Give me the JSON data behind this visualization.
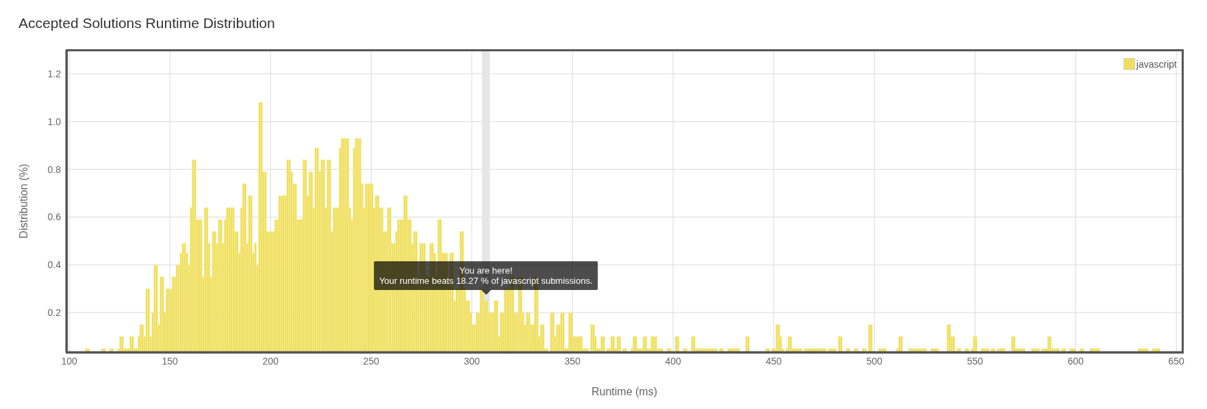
{
  "chart_data": {
    "type": "histogram",
    "title": "Accepted Solutions Runtime Distribution",
    "xlabel": "Runtime (ms)",
    "ylabel": "Distribution (%)",
    "bins": [
      108,
      109,
      110,
      111,
      112,
      113,
      114,
      115,
      116,
      117,
      118,
      119,
      120,
      121,
      122,
      123,
      124,
      125,
      126,
      127,
      128,
      129,
      130,
      131,
      132,
      133,
      134,
      135,
      136,
      137,
      138,
      139,
      140,
      141,
      142,
      143,
      144,
      145,
      146,
      147,
      148,
      149,
      150,
      151,
      152,
      153,
      154,
      155,
      156,
      157,
      158,
      159,
      160,
      161,
      162,
      163,
      164,
      165,
      166,
      167,
      168,
      169,
      170,
      171,
      172,
      173,
      174,
      175,
      176,
      177,
      178,
      179,
      180,
      181,
      182,
      183,
      184,
      185,
      186,
      187,
      188,
      189,
      190,
      191,
      192,
      193,
      194,
      195,
      196,
      197,
      198,
      199,
      200,
      201,
      202,
      203,
      204,
      205,
      206,
      207,
      208,
      209,
      210,
      211,
      212,
      213,
      214,
      215,
      216,
      217,
      218,
      219,
      220,
      221,
      222,
      223,
      224,
      225,
      226,
      227,
      228,
      229,
      230,
      231,
      232,
      233,
      234,
      235,
      236,
      237,
      238,
      239,
      240,
      241,
      242,
      243,
      244,
      245,
      246,
      247,
      248,
      249,
      250,
      251,
      252,
      253,
      254,
      255,
      256,
      257,
      258,
      259,
      260,
      261,
      262,
      263,
      264,
      265,
      266,
      267,
      268,
      269,
      270,
      271,
      272,
      273,
      274,
      275,
      276,
      277,
      278,
      279,
      280,
      281,
      282,
      283,
      284,
      285,
      286,
      287,
      288,
      289,
      290,
      291,
      292,
      293,
      294,
      295,
      296,
      297,
      298,
      299,
      300,
      301,
      302,
      303,
      304,
      305,
      306,
      307,
      308,
      309,
      310,
      311,
      312,
      313,
      314,
      315,
      316,
      317,
      318,
      319,
      320,
      321,
      322,
      323,
      324,
      325,
      326,
      327,
      328,
      329,
      330,
      331,
      332,
      333,
      334,
      335,
      336,
      337,
      338,
      339,
      340,
      341,
      342,
      343,
      344,
      345,
      346,
      347,
      348,
      349,
      350,
      351,
      352,
      353,
      354,
      355,
      356,
      357,
      358,
      359,
      360,
      361,
      362,
      363,
      364,
      365,
      366,
      367,
      368,
      369,
      370,
      371,
      372,
      373,
      374,
      375,
      376,
      377,
      378,
      379,
      380,
      381,
      382,
      383,
      384,
      385,
      386,
      387,
      388,
      389,
      390,
      391,
      392,
      393,
      394,
      395,
      396,
      397,
      398,
      399,
      400,
      401,
      402,
      403,
      404,
      405,
      406,
      407,
      408,
      409,
      410,
      411,
      412,
      413,
      414,
      415,
      416,
      417,
      418,
      419,
      420,
      421,
      422,
      423,
      424,
      425,
      426,
      427,
      428,
      429,
      430,
      431,
      432,
      433,
      434,
      435,
      436,
      437,
      438,
      439,
      440,
      441,
      442,
      443,
      444,
      445,
      446,
      447,
      448,
      449,
      450,
      451,
      452,
      453,
      454,
      455,
      456,
      457,
      458,
      459,
      460,
      461,
      462,
      463,
      464,
      465,
      466,
      467,
      468,
      469,
      470,
      471,
      472,
      473,
      474,
      475,
      476,
      477,
      478,
      479,
      480,
      481,
      482,
      483,
      484,
      485,
      486,
      487,
      488,
      489,
      490,
      491,
      492,
      493,
      494,
      495,
      496,
      497,
      498,
      499,
      500,
      501,
      502,
      503,
      504,
      505,
      506,
      507,
      508,
      509,
      510,
      511,
      512,
      513,
      514,
      515,
      516,
      517,
      518,
      519,
      520,
      521,
      522,
      523,
      524,
      525,
      526,
      527,
      528,
      529,
      530,
      531,
      532,
      533,
      534,
      535,
      536,
      537,
      538,
      539,
      540,
      541,
      542,
      543,
      544,
      545,
      546,
      547,
      548,
      549,
      550,
      551,
      552,
      553,
      554,
      555,
      556,
      557,
      558,
      559,
      560,
      561,
      562,
      563,
      564,
      565,
      566,
      567,
      568,
      569,
      570,
      571,
      572,
      573,
      574,
      575,
      576,
      577,
      578,
      579,
      580,
      581,
      582,
      583,
      584,
      585,
      586,
      587,
      588,
      589,
      590,
      591,
      592,
      593,
      594,
      595,
      596,
      597,
      598,
      599,
      600,
      601,
      602,
      603,
      604,
      605,
      606,
      607,
      608,
      609,
      610,
      611,
      612,
      613,
      614,
      615,
      616,
      617,
      618,
      619,
      620,
      621,
      622,
      623,
      624,
      625,
      626,
      627,
      628,
      629,
      630,
      631,
      632,
      633,
      634,
      635,
      636,
      637,
      638,
      639,
      640,
      641,
      642
    ],
    "series": [
      {
        "name": "javascript",
        "color": "#f0df5b",
        "values": [
          0.05,
          0.05,
          null,
          null,
          null,
          null,
          null,
          null,
          0.05,
          0.05,
          null,
          null,
          0.05,
          0.05,
          null,
          null,
          0.05,
          0.1,
          0.1,
          0.05,
          0.05,
          0.05,
          0.1,
          0.1,
          0.05,
          0.05,
          0.1,
          0.15,
          0.15,
          0.1,
          0.3,
          0.3,
          0.1,
          0.2,
          0.4,
          0.4,
          0.15,
          0.35,
          0.35,
          0.2,
          0.3,
          0.3,
          0.3,
          0.35,
          0.35,
          0.4,
          0.4,
          0.45,
          0.49,
          0.49,
          0.45,
          0.4,
          0.64,
          0.84,
          0.84,
          0.59,
          0.59,
          0.59,
          0.35,
          0.64,
          0.64,
          0.49,
          0.35,
          0.54,
          0.54,
          0.49,
          0.59,
          0.59,
          0.49,
          0.59,
          0.64,
          0.64,
          0.64,
          0.64,
          0.54,
          0.54,
          0.45,
          0.64,
          0.74,
          0.74,
          0.49,
          0.69,
          0.69,
          0.45,
          0.49,
          0.4,
          1.08,
          1.08,
          0.79,
          0.79,
          0.54,
          0.54,
          0.54,
          0.54,
          0.59,
          0.59,
          0.69,
          0.69,
          0.69,
          0.69,
          0.84,
          0.84,
          0.79,
          0.74,
          0.74,
          0.59,
          0.59,
          0.59,
          0.84,
          0.84,
          0.69,
          0.79,
          0.79,
          0.64,
          0.89,
          0.89,
          0.79,
          0.84,
          0.84,
          0.64,
          0.84,
          0.84,
          0.54,
          0.64,
          0.64,
          0.64,
          0.89,
          0.93,
          0.93,
          0.93,
          0.93,
          0.64,
          0.59,
          0.89,
          0.93,
          0.93,
          0.93,
          0.74,
          0.64,
          0.74,
          0.74,
          0.74,
          0.74,
          0.64,
          0.69,
          0.69,
          0.64,
          0.64,
          0.54,
          0.54,
          0.64,
          0.64,
          0.49,
          0.49,
          0.54,
          0.59,
          0.59,
          0.59,
          0.69,
          0.69,
          0.59,
          0.59,
          0.49,
          0.54,
          0.54,
          0.35,
          0.49,
          0.49,
          0.49,
          0.35,
          0.35,
          0.49,
          0.49,
          0.45,
          0.35,
          0.59,
          0.59,
          0.45,
          0.45,
          0.45,
          0.35,
          0.45,
          0.45,
          0.25,
          0.3,
          0.3,
          0.54,
          0.54,
          0.3,
          0.25,
          0.25,
          0.2,
          0.15,
          0.15,
          0.2,
          0.2,
          0.3,
          0.3,
          0.25,
          0.25,
          0.2,
          0.2,
          0.2,
          0.25,
          0.25,
          0.1,
          0.2,
          0.2,
          0.3,
          0.3,
          0.3,
          0.35,
          0.35,
          0.2,
          0.2,
          0.35,
          0.35,
          0.2,
          0.15,
          0.2,
          0.2,
          0.15,
          0.15,
          0.35,
          0.35,
          0.1,
          0.15,
          0.15,
          0.05,
          0.05,
          null,
          0.2,
          0.2,
          0.1,
          0.15,
          0.15,
          0.2,
          0.2,
          0.05,
          0.05,
          0.2,
          0.2,
          0.1,
          0.1,
          0.1,
          0.1,
          0.1,
          0.05,
          0.05,
          0.05,
          null,
          0.15,
          0.15,
          0.1,
          0.05,
          0.05,
          0.1,
          0.1,
          null,
          0.05,
          0.05,
          0.1,
          0.1,
          0.05,
          0.1,
          0.1,
          null,
          0.05,
          0.05,
          null,
          null,
          0.05,
          0.1,
          0.1,
          0.05,
          0.05,
          0.05,
          0.1,
          0.1,
          0.05,
          0.05,
          0.1,
          0.1,
          0.1,
          0.05,
          0.05,
          0.05,
          null,
          null,
          0.05,
          0.05,
          null,
          null,
          0.1,
          0.1,
          null,
          null,
          0.05,
          0.05,
          null,
          null,
          0.1,
          0.1,
          0.05,
          0.05,
          0.05,
          0.05,
          0.05,
          0.05,
          0.05,
          0.05,
          0.05,
          0.05,
          0.05,
          null,
          0.05,
          0.05,
          null,
          null,
          0.05,
          0.05,
          0.05,
          0.05,
          0.05,
          0.05,
          null,
          null,
          null,
          0.1,
          0.1,
          null,
          null,
          null,
          null,
          null,
          null,
          null,
          null,
          0.05,
          0.05,
          null,
          0.05,
          0.05,
          0.15,
          0.15,
          0.1,
          0.05,
          null,
          0.05,
          0.1,
          0.1,
          0.05,
          0.05,
          0.05,
          0.05,
          0.05,
          null,
          0.05,
          0.05,
          0.05,
          0.05,
          0.05,
          0.05,
          0.05,
          0.05,
          0.05,
          0.05,
          0.05,
          null,
          0.05,
          0.05,
          0.05,
          0.05,
          null,
          0.1,
          0.1,
          null,
          null,
          0.05,
          0.05,
          null,
          null,
          0.05,
          0.05,
          null,
          null,
          0.05,
          0.05,
          null,
          0.15,
          0.15,
          null,
          null,
          null,
          0.05,
          0.05,
          0.05,
          0.05,
          null,
          null,
          null,
          null,
          null,
          0.05,
          0.1,
          0.1,
          null,
          null,
          null,
          0.05,
          0.05,
          0.05,
          0.05,
          0.05,
          0.05,
          0.05,
          0.05,
          0.05,
          null,
          null,
          0.05,
          0.05,
          0.05,
          0.05,
          null,
          null,
          null,
          null,
          0.15,
          0.15,
          0.1,
          0.1,
          null,
          0.05,
          0.05,
          null,
          null,
          0.05,
          0.05,
          null,
          0.05,
          0.1,
          0.1,
          null,
          null,
          0.05,
          0.05,
          0.05,
          0.05,
          null,
          0.05,
          0.05,
          null,
          0.05,
          0.05,
          0.05,
          0.05,
          null,
          null,
          null,
          0.1,
          0.1,
          0.05,
          0.05,
          0.05,
          0.05,
          0.05,
          null,
          null,
          null,
          0.05,
          0.05,
          0.05,
          0.05,
          null,
          0.05,
          0.05,
          0.05,
          0.1,
          0.1,
          0.05,
          0.05,
          0.05,
          0.05,
          null,
          0.05,
          0.05,
          null,
          null,
          0.05,
          0.05,
          0.05,
          null,
          null,
          0.05,
          0.05,
          null,
          null,
          null,
          0.05,
          0.05,
          0.05,
          0.05,
          0.05,
          null,
          null,
          null,
          null,
          null,
          null,
          null,
          null,
          null,
          null,
          null,
          null,
          null,
          null,
          null,
          null,
          null,
          null,
          null,
          0.05,
          0.05,
          0.05,
          0.05,
          0.05,
          null,
          null,
          0.05,
          0.05,
          0.05,
          0.05
        ]
      }
    ],
    "xlim": [
      98.6,
      653
    ],
    "xticks": [
      100,
      150,
      200,
      250,
      300,
      350,
      400,
      450,
      500,
      550,
      600,
      650
    ],
    "ylim": [
      0.034,
      1.3
    ],
    "yticks": [
      0.2,
      0.4,
      0.6,
      0.8,
      {
        "value": 1,
        "label": "1.0"
      },
      1.2
    ],
    "grid": true,
    "legend": "top right",
    "bands": [
      {
        "axis": "x",
        "from": 305,
        "to": 309,
        "color": "#e6e6e6"
      }
    ],
    "annotations": [
      "You are here!\nYour runtime beats 18.27 % of javascript submissions."
    ]
  }
}
